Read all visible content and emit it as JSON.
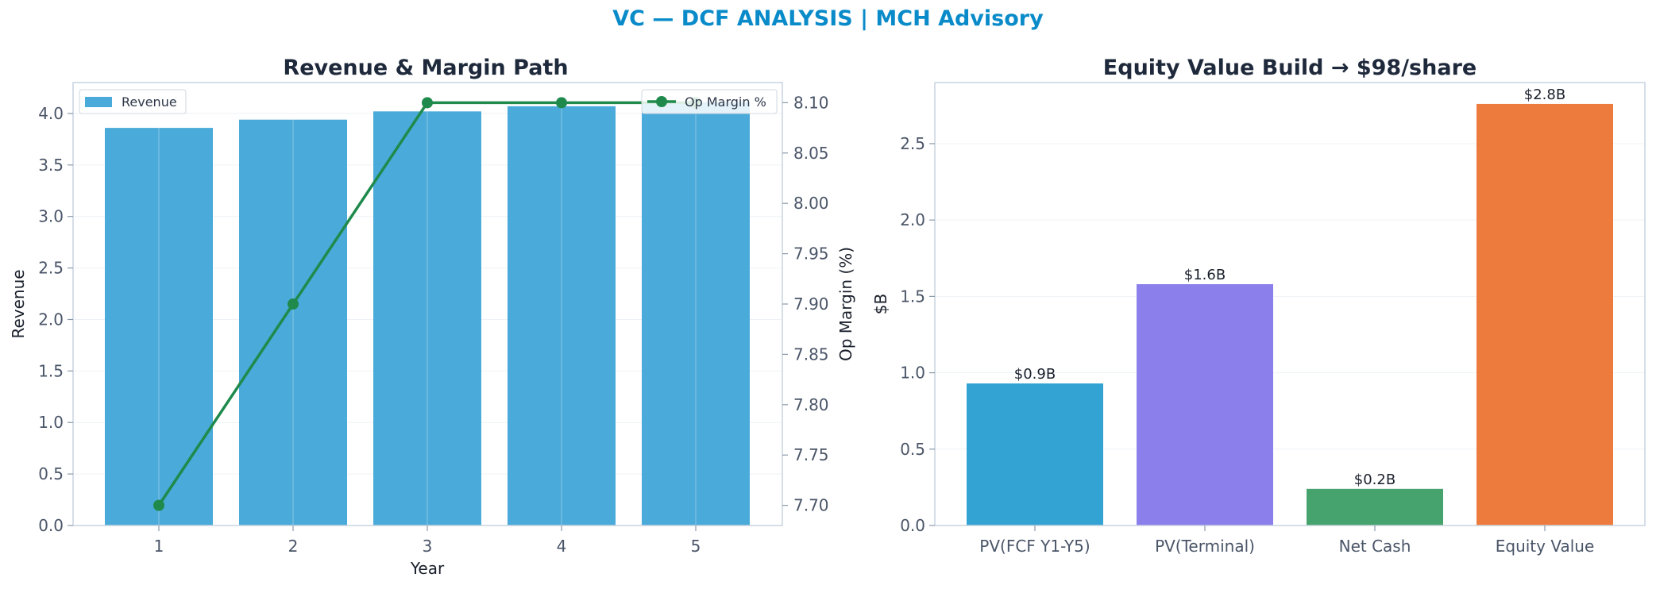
{
  "header": {
    "title": "VC — DCF ANALYSIS | MCH Advisory"
  },
  "colors": {
    "title": "#0a8bc9",
    "revenue_bar": "#4aaad9",
    "margin_line": "#1f8a4c",
    "frame": "#c8d3df",
    "grid": "#eef2f6"
  },
  "chart_data": [
    {
      "type": "bar",
      "title": "Revenue & Margin Path",
      "xlabel": "Year",
      "ylabel": "Revenue",
      "y2label": "Op Margin (%)",
      "categories": [
        "1",
        "2",
        "3",
        "4",
        "5"
      ],
      "series": [
        {
          "name": "Revenue",
          "axis": "left",
          "type": "bar",
          "values": [
            3.86,
            3.94,
            4.02,
            4.07,
            4.11
          ]
        },
        {
          "name": "Op Margin %",
          "axis": "right",
          "type": "line",
          "values": [
            7.7,
            7.9,
            8.1,
            8.1,
            8.1
          ]
        }
      ],
      "ylim": [
        0,
        4.3
      ],
      "yticks": [
        "0.0",
        "0.5",
        "1.0",
        "1.5",
        "2.0",
        "2.5",
        "3.0",
        "3.5",
        "4.0"
      ],
      "y2lim": [
        7.68,
        8.12
      ],
      "y2ticks": [
        "7.70",
        "7.75",
        "7.80",
        "7.85",
        "7.90",
        "7.95",
        "8.00",
        "8.05",
        "8.10"
      ],
      "grid": true,
      "legend_left": "upper-left",
      "legend_right": "upper-right"
    },
    {
      "type": "bar",
      "title": "Equity Value Build → $98/share",
      "xlabel": "",
      "ylabel": "$B",
      "categories": [
        "PV(FCF Y1-Y5)",
        "PV(Terminal)",
        "Net Cash",
        "Equity Value"
      ],
      "values": [
        0.93,
        1.58,
        0.24,
        2.76
      ],
      "data_labels": [
        "$0.9B",
        "$1.6B",
        "$0.2B",
        "$2.8B"
      ],
      "colors": [
        "#33a3d4",
        "#8b7fec",
        "#47a36d",
        "#ee7b3e"
      ],
      "ylim": [
        0,
        2.9
      ],
      "yticks": [
        "0.0",
        "0.5",
        "1.0",
        "1.5",
        "2.0",
        "2.5"
      ],
      "grid": true
    }
  ]
}
